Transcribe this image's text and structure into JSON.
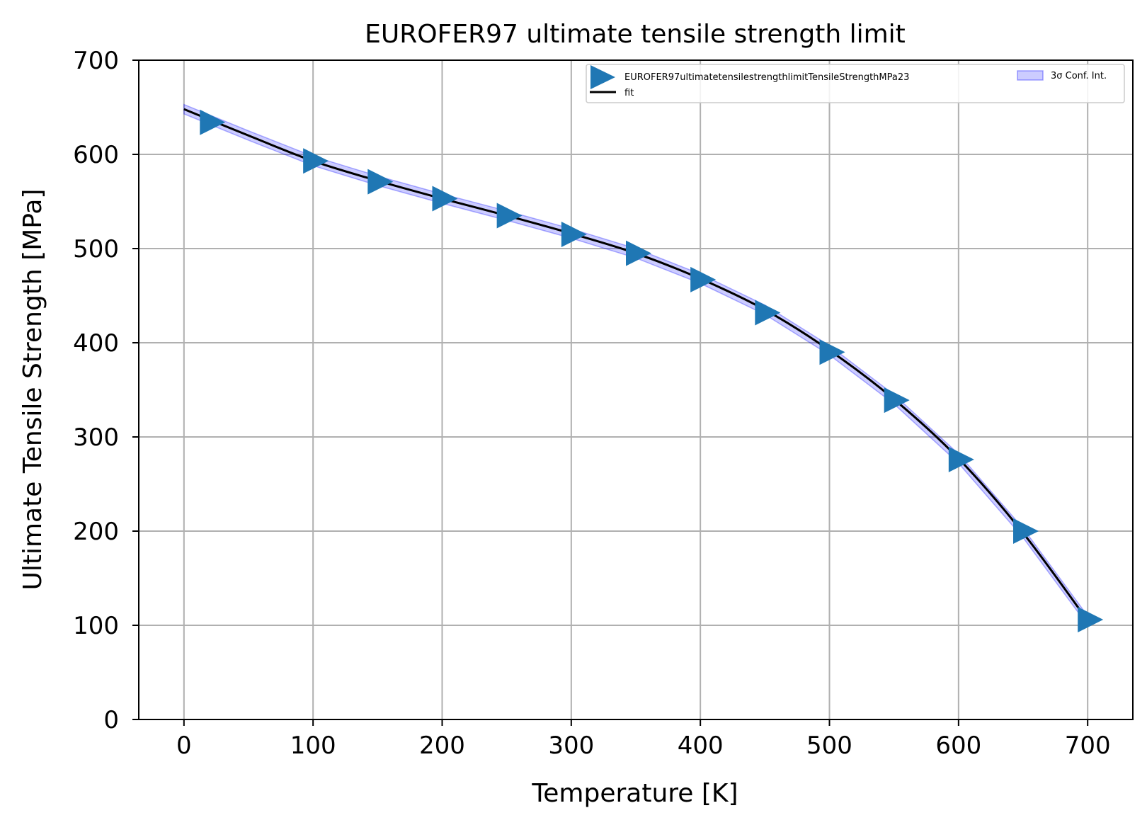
{
  "chart_data": {
    "type": "scatter",
    "title": "EUROFER97 ultimate tensile strength limit",
    "xlabel": "Temperature [K]",
    "ylabel": "Ultimate Tensile Strength [MPa]",
    "xlim": [
      -35,
      735
    ],
    "ylim": [
      0,
      700
    ],
    "xticks": [
      0,
      100,
      200,
      300,
      400,
      500,
      600,
      700
    ],
    "yticks": [
      0,
      100,
      200,
      300,
      400,
      500,
      600,
      700
    ],
    "grid": true,
    "legend_position": "top-right",
    "series": [
      {
        "name": "EUROFER97ultimatetensilestrengthlimitTensileStrengthMPa23",
        "kind": "scatter",
        "marker": "triangle-right",
        "color": "#1f77b4",
        "x": [
          20,
          100,
          150,
          200,
          250,
          300,
          350,
          400,
          450,
          500,
          550,
          600,
          650,
          700
        ],
        "y": [
          634,
          593,
          571,
          553,
          535,
          515,
          495,
          467,
          432,
          390,
          339,
          276,
          200,
          106
        ]
      },
      {
        "name": "fit",
        "kind": "line",
        "color": "#000000",
        "x": [
          0,
          50,
          100,
          150,
          200,
          250,
          300,
          350,
          400,
          450,
          500,
          550,
          600,
          650,
          700
        ],
        "y": [
          648,
          620,
          593,
          572,
          553,
          535,
          516,
          495,
          468,
          435,
          392,
          340,
          277,
          198,
          105
        ]
      },
      {
        "name": "3σ Conf. Int.",
        "kind": "band",
        "color": "#0000ff",
        "halfwidth": 5
      }
    ]
  }
}
